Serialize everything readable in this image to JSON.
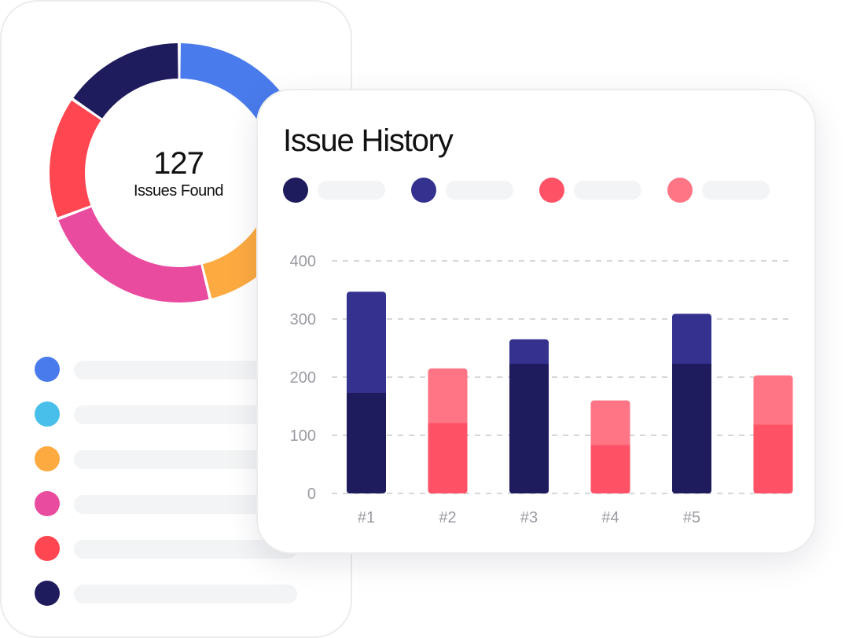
{
  "donut_card": {
    "count": "127",
    "caption": "Issues Found",
    "segments": [
      {
        "color": "#4A7BEC",
        "share": 17
      },
      {
        "color": "#48BFEB",
        "share": 14
      },
      {
        "color": "#FDAA40",
        "share": 11
      },
      {
        "color": "#E94B9F",
        "share": 21
      },
      {
        "color": "#FF4651",
        "share": 14
      },
      {
        "color": "#1F1C5E",
        "share": 14
      }
    ],
    "list_items": [
      {
        "color": "#4A7BEC",
        "icon": "blue-dot-icon"
      },
      {
        "color": "#48BFEB",
        "icon": "cyan-dot-icon"
      },
      {
        "color": "#FDAA40",
        "icon": "orange-dot-icon"
      },
      {
        "color": "#E94B9F",
        "icon": "pink-dot-icon"
      },
      {
        "color": "#FF4651",
        "icon": "red-dot-icon"
      },
      {
        "color": "#1F1C5E",
        "icon": "navy-dot-icon"
      }
    ]
  },
  "history_card": {
    "title": "Issue History",
    "legend": [
      {
        "color": "#1F1C5E"
      },
      {
        "color": "#35328F"
      },
      {
        "color": "#FF5266"
      },
      {
        "color": "#FF7585"
      }
    ]
  },
  "chart_data": {
    "type": "bar",
    "stacked": true,
    "categories": [
      "#1",
      "#2",
      "#3",
      "#4",
      "#5",
      ""
    ],
    "ylim": [
      0,
      400
    ],
    "yticks": [
      "0",
      "100",
      "200",
      "300",
      "400"
    ],
    "grid": true,
    "bars": [
      {
        "bottom": 173,
        "top": 347,
        "bottom_color": "#1F1C5E",
        "top_color": "#35328F"
      },
      {
        "bottom": 121,
        "top": 215,
        "bottom_color": "#FF5266",
        "top_color": "#FF7585"
      },
      {
        "bottom": 223,
        "top": 265,
        "bottom_color": "#1F1C5E",
        "top_color": "#35328F"
      },
      {
        "bottom": 83,
        "top": 160,
        "bottom_color": "#FF5266",
        "top_color": "#FF7585"
      },
      {
        "bottom": 223,
        "top": 309,
        "bottom_color": "#1F1C5E",
        "top_color": "#35328F"
      },
      {
        "bottom": 118,
        "top": 203,
        "bottom_color": "#FF5266",
        "top_color": "#FF7585"
      }
    ]
  }
}
